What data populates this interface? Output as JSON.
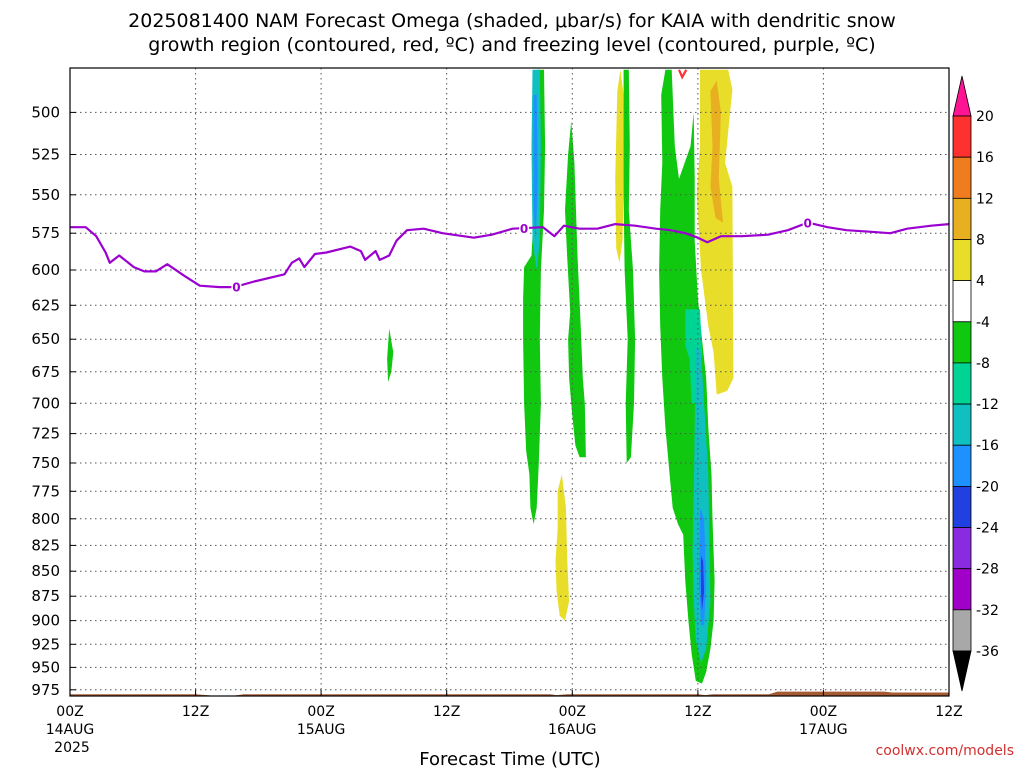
{
  "title_line1": "2025081400 NAM Forecast Omega (shaded, μbar/s) for KAIA with dendritic snow",
  "title_line2": "growth region (contoured, red, ºC) and freezing level (contoured, purple, ºC)",
  "xlabel": "Forecast Time (UTC)",
  "credit": "coolwx.com/models",
  "colors": {
    "freezing_level": "#9b00d1",
    "dgz": "#ff3030",
    "terrain": "#a65a33",
    "credit": "#d03030",
    "grid": "#777777"
  },
  "chart_data": {
    "type": "heatmap",
    "ylabel_values": [
      500,
      525,
      550,
      575,
      600,
      625,
      650,
      675,
      700,
      725,
      750,
      775,
      800,
      825,
      850,
      875,
      900,
      925,
      950,
      975
    ],
    "ylim": [
      982,
      475
    ],
    "x_range_hours": [
      0,
      84
    ],
    "x_ticks": [
      {
        "hour": 0,
        "line1": "00Z",
        "line2": "14AUG",
        "line3": "2025"
      },
      {
        "hour": 12,
        "line1": "12Z",
        "line2": "",
        "line3": ""
      },
      {
        "hour": 24,
        "line1": "00Z",
        "line2": "15AUG",
        "line3": ""
      },
      {
        "hour": 36,
        "line1": "12Z",
        "line2": "",
        "line3": ""
      },
      {
        "hour": 48,
        "line1": "00Z",
        "line2": "16AUG",
        "line3": ""
      },
      {
        "hour": 60,
        "line1": "12Z",
        "line2": "",
        "line3": ""
      },
      {
        "hour": 72,
        "line1": "00Z",
        "line2": "17AUG",
        "line3": ""
      },
      {
        "hour": 84,
        "line1": "12Z",
        "line2": "",
        "line3": ""
      }
    ],
    "grid": true,
    "colorbar": {
      "labels": [
        "20",
        "16",
        "12",
        "8",
        "4",
        "-4",
        "-8",
        "-12",
        "-16",
        "-20",
        "-24",
        "-28",
        "-32",
        "-36"
      ],
      "colors": [
        "#ff1493",
        "#ff3030",
        "#f07c20",
        "#e8b020",
        "#e8de2a",
        "#ffffff",
        "#10c810",
        "#00d494",
        "#10c0c0",
        "#1e90ff",
        "#2040e0",
        "#8a2be2",
        "#a000c8",
        "#a8a8a8",
        "#000000"
      ]
    },
    "freezing_level_label": "0",
    "freezing_level_label_hours": [
      15.9,
      43.4,
      70.5
    ],
    "freezing_level": [
      [
        0,
        571
      ],
      [
        1.5,
        571
      ],
      [
        2.5,
        577
      ],
      [
        3.4,
        588
      ],
      [
        3.8,
        595
      ],
      [
        4.7,
        590
      ],
      [
        6.1,
        598
      ],
      [
        7.1,
        601
      ],
      [
        8.2,
        601
      ],
      [
        9.3,
        596
      ],
      [
        10.9,
        604
      ],
      [
        12.4,
        611
      ],
      [
        14.3,
        612
      ],
      [
        15.7,
        612
      ],
      [
        17.6,
        608
      ],
      [
        20.5,
        603
      ],
      [
        21.2,
        595
      ],
      [
        21.9,
        592
      ],
      [
        22.4,
        598
      ],
      [
        23.4,
        589
      ],
      [
        24.5,
        588
      ],
      [
        26.8,
        584
      ],
      [
        27.8,
        587
      ],
      [
        28.2,
        593
      ],
      [
        29.2,
        587
      ],
      [
        29.6,
        593
      ],
      [
        30.5,
        590
      ],
      [
        31.2,
        580
      ],
      [
        32.2,
        573
      ],
      [
        33.8,
        572
      ],
      [
        35.6,
        575
      ],
      [
        37.6,
        577
      ],
      [
        38.6,
        578
      ],
      [
        40.3,
        576
      ],
      [
        42.3,
        572
      ],
      [
        45.2,
        571
      ],
      [
        46.3,
        577
      ],
      [
        47.2,
        570
      ],
      [
        48.7,
        572
      ],
      [
        50.4,
        572
      ],
      [
        52.1,
        569
      ],
      [
        54.0,
        570
      ],
      [
        56.0,
        572
      ],
      [
        57.4,
        573
      ],
      [
        58.8,
        575
      ],
      [
        60.0,
        578
      ],
      [
        60.9,
        581
      ],
      [
        62.2,
        577
      ],
      [
        64.2,
        577
      ],
      [
        66.7,
        576
      ],
      [
        68.6,
        573
      ],
      [
        70.5,
        568
      ],
      [
        72.4,
        571
      ],
      [
        74.2,
        573
      ],
      [
        76.4,
        574
      ],
      [
        78.4,
        575
      ],
      [
        80.0,
        572
      ],
      [
        82.3,
        570
      ],
      [
        84,
        569
      ]
    ],
    "terrain_top_hours": [
      [
        0,
        980
      ],
      [
        12,
        980
      ],
      [
        14.1,
        982
      ],
      [
        15.4,
        982
      ],
      [
        16.6,
        980
      ],
      [
        45.9,
        980
      ],
      [
        46.5,
        981
      ],
      [
        47.5,
        980
      ],
      [
        60,
        980
      ],
      [
        60.7,
        981
      ],
      [
        61.4,
        980
      ],
      [
        66.8,
        980
      ],
      [
        67.6,
        977
      ],
      [
        77.8,
        977
      ],
      [
        78.6,
        978
      ],
      [
        84,
        978
      ]
    ],
    "omega_regions": [
      {
        "name": "yellow",
        "level": "4 to 8",
        "color": "#e8de2a",
        "points": [
          [
            60.2,
            476
          ],
          [
            62.9,
            476
          ],
          [
            63.3,
            487
          ],
          [
            62.6,
            530
          ],
          [
            63.3,
            545
          ],
          [
            63.4,
            680
          ],
          [
            62.8,
            690
          ],
          [
            61.8,
            693
          ],
          [
            61.5,
            660
          ],
          [
            61.0,
            640
          ],
          [
            60.3,
            600
          ],
          [
            59.9,
            550
          ],
          [
            60.2,
            520
          ]
        ]
      },
      {
        "name": "yellow",
        "level": "4 to 8",
        "color": "#e8de2a",
        "points": [
          [
            52.3,
            488
          ],
          [
            52.6,
            476
          ],
          [
            52.9,
            490
          ],
          [
            53.0,
            520
          ],
          [
            52.8,
            580
          ],
          [
            52.5,
            595
          ],
          [
            52.2,
            585
          ],
          [
            52.1,
            540
          ]
        ]
      },
      {
        "name": "yellow",
        "level": "4 to 8",
        "color": "#e8de2a",
        "points": [
          [
            46.6,
            775
          ],
          [
            47.0,
            760
          ],
          [
            47.4,
            790
          ],
          [
            47.5,
            835
          ],
          [
            47.7,
            880
          ],
          [
            47.3,
            900
          ],
          [
            46.8,
            895
          ],
          [
            46.5,
            870
          ],
          [
            46.4,
            840
          ],
          [
            46.6,
            810
          ]
        ]
      },
      {
        "name": "orange",
        "level": "8 to 12",
        "color": "#e8b020",
        "points": [
          [
            61.2,
            488
          ],
          [
            61.8,
            482
          ],
          [
            62.2,
            500
          ],
          [
            62.0,
            540
          ],
          [
            62.4,
            568
          ],
          [
            61.7,
            565
          ],
          [
            61.2,
            545
          ],
          [
            61.4,
            520
          ]
        ]
      },
      {
        "name": "green",
        "level": "-4 to -8",
        "color": "#10c810",
        "points": [
          [
            44.6,
            476
          ],
          [
            45.3,
            476
          ],
          [
            45.4,
            520
          ],
          [
            45.3,
            560
          ],
          [
            45.0,
            600
          ],
          [
            44.9,
            650
          ],
          [
            45.0,
            700
          ],
          [
            44.8,
            750
          ],
          [
            44.6,
            790
          ],
          [
            44.3,
            805
          ],
          [
            44.0,
            790
          ],
          [
            43.9,
            760
          ],
          [
            43.6,
            740
          ],
          [
            43.4,
            700
          ],
          [
            43.3,
            650
          ],
          [
            43.3,
            620
          ],
          [
            43.4,
            598
          ],
          [
            44.1,
            590
          ],
          [
            44.4,
            550
          ],
          [
            44.3,
            500
          ]
        ]
      },
      {
        "name": "green",
        "level": "-4 to -8",
        "color": "#10c810",
        "points": [
          [
            47.6,
            525
          ],
          [
            47.9,
            505
          ],
          [
            48.2,
            530
          ],
          [
            48.5,
            590
          ],
          [
            48.8,
            640
          ],
          [
            49.0,
            680
          ],
          [
            49.2,
            700
          ],
          [
            49.3,
            745
          ],
          [
            48.7,
            745
          ],
          [
            48.3,
            735
          ],
          [
            48.0,
            710
          ],
          [
            47.7,
            680
          ],
          [
            47.6,
            650
          ],
          [
            47.8,
            630
          ],
          [
            47.5,
            590
          ],
          [
            47.3,
            560
          ]
        ]
      },
      {
        "name": "green",
        "level": "-4 to -8",
        "color": "#10c810",
        "points": [
          [
            52.9,
            476
          ],
          [
            53.4,
            476
          ],
          [
            53.5,
            520
          ],
          [
            53.4,
            560
          ],
          [
            53.8,
            600
          ],
          [
            54.0,
            650
          ],
          [
            53.9,
            700
          ],
          [
            53.6,
            745
          ],
          [
            53.2,
            750
          ],
          [
            53.1,
            700
          ],
          [
            53.3,
            650
          ],
          [
            53.0,
            600
          ],
          [
            52.9,
            550
          ]
        ]
      },
      {
        "name": "green",
        "level": "-4 to -8",
        "color": "#10c810",
        "points": [
          [
            56.5,
            490
          ],
          [
            56.9,
            476
          ],
          [
            57.5,
            476
          ],
          [
            57.8,
            520
          ],
          [
            58.2,
            540
          ],
          [
            59.3,
            520
          ],
          [
            59.6,
            500
          ],
          [
            59.7,
            540
          ],
          [
            59.7,
            580
          ],
          [
            60.0,
            620
          ],
          [
            60.4,
            650
          ],
          [
            60.8,
            680
          ],
          [
            61.0,
            720
          ],
          [
            61.3,
            760
          ],
          [
            61.4,
            800
          ],
          [
            61.6,
            860
          ],
          [
            61.5,
            900
          ],
          [
            61.2,
            930
          ],
          [
            60.8,
            955
          ],
          [
            60.4,
            968
          ],
          [
            59.8,
            965
          ],
          [
            59.4,
            935
          ],
          [
            59.1,
            900
          ],
          [
            58.8,
            860
          ],
          [
            58.6,
            815
          ],
          [
            58.1,
            805
          ],
          [
            57.6,
            790
          ],
          [
            57.3,
            760
          ],
          [
            56.9,
            720
          ],
          [
            56.6,
            680
          ],
          [
            56.4,
            640
          ],
          [
            56.3,
            600
          ],
          [
            56.4,
            560
          ],
          [
            56.6,
            530
          ]
        ]
      },
      {
        "name": "green",
        "level": "-4 to -8",
        "color": "#10c810",
        "points": [
          [
            30.5,
            642
          ],
          [
            30.9,
            660
          ],
          [
            30.7,
            675
          ],
          [
            30.4,
            683
          ],
          [
            30.3,
            665
          ]
        ]
      },
      {
        "name": "teal",
        "level": "-8 to -12",
        "color": "#00d494",
        "points": [
          [
            58.8,
            628
          ],
          [
            60.2,
            628
          ],
          [
            60.4,
            660
          ],
          [
            59.9,
            700
          ],
          [
            59.4,
            700
          ],
          [
            59.2,
            665
          ],
          [
            58.8,
            655
          ]
        ]
      },
      {
        "name": "cyan",
        "level": "-12 to -16",
        "color": "#10c0c0",
        "points": [
          [
            44.2,
            476
          ],
          [
            44.9,
            476
          ],
          [
            45.0,
            520
          ],
          [
            44.9,
            580
          ],
          [
            44.6,
            600
          ],
          [
            44.2,
            580
          ],
          [
            44.1,
            520
          ]
        ]
      },
      {
        "name": "cyan",
        "level": "-12 to -16",
        "color": "#10c0c0",
        "points": [
          [
            59.8,
            655
          ],
          [
            60.3,
            660
          ],
          [
            60.6,
            700
          ],
          [
            61.0,
            760
          ],
          [
            61.1,
            820
          ],
          [
            61.2,
            880
          ],
          [
            60.8,
            930
          ],
          [
            60.3,
            945
          ],
          [
            59.8,
            920
          ],
          [
            59.6,
            880
          ],
          [
            59.5,
            830
          ],
          [
            59.6,
            780
          ],
          [
            59.7,
            720
          ]
        ]
      },
      {
        "name": "blue",
        "level": "-16 to -20",
        "color": "#1e90ff",
        "points": [
          [
            44.3,
            490
          ],
          [
            44.6,
            490
          ],
          [
            44.7,
            540
          ],
          [
            44.5,
            580
          ],
          [
            44.3,
            560
          ]
        ]
      },
      {
        "name": "blue",
        "level": "-16 to -20",
        "color": "#1e90ff",
        "points": [
          [
            60.2,
            790
          ],
          [
            60.6,
            800
          ],
          [
            60.8,
            860
          ],
          [
            60.6,
            905
          ],
          [
            60.3,
            905
          ],
          [
            60.1,
            860
          ]
        ]
      },
      {
        "name": "deep-blue",
        "level": "-20 to -24",
        "color": "#2040e0",
        "points": [
          [
            60.3,
            835
          ],
          [
            60.5,
            840
          ],
          [
            60.6,
            870
          ],
          [
            60.4,
            890
          ],
          [
            60.3,
            870
          ]
        ]
      }
    ],
    "dgz_contour": [
      [
        58.2,
        476
      ],
      [
        58.5,
        480
      ],
      [
        58.9,
        476
      ]
    ]
  }
}
